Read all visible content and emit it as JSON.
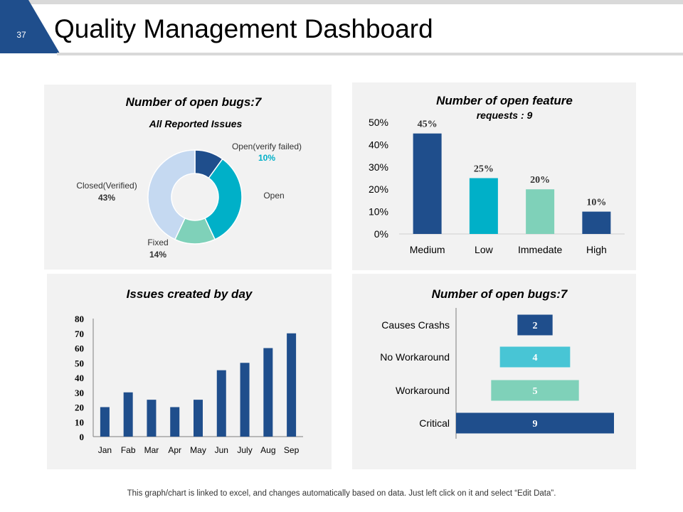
{
  "slide": {
    "number": "37",
    "title": "Quality Management Dashboard",
    "footer": "This graph/chart is linked to excel, and changes automatically based on data. Just left click on it and select “Edit Data”."
  },
  "colors": {
    "dark_blue": "#1f4e8c",
    "cyan": "#00b0c8",
    "mint": "#7fd1b9",
    "light_blue": "#c5d9f1",
    "teal_cyan": "#48c5d5"
  },
  "chart_data": [
    {
      "type": "pie",
      "title": "Number of open bugs:7",
      "subtitle": "All Reported Issues",
      "slices": [
        {
          "label": "Open(verify failed)",
          "value": 10,
          "display": "10%",
          "color": "#1f4e8c"
        },
        {
          "label": "Open",
          "value": 33,
          "display": "",
          "color": "#00b0c8"
        },
        {
          "label": "Fixed",
          "value": 14,
          "display": "14%",
          "color": "#7fd1b9"
        },
        {
          "label": "Closed(Verified)",
          "value": 43,
          "display": "43%",
          "color": "#c5d9f1"
        }
      ]
    },
    {
      "type": "bar",
      "title": "Number of open feature",
      "subtitle": "requests : 9",
      "categories": [
        "Medium",
        "Low",
        "Immedate",
        "High"
      ],
      "values": [
        45,
        25,
        20,
        10
      ],
      "labels": [
        "45%",
        "25%",
        "20%",
        "10%"
      ],
      "colors": [
        "#1f4e8c",
        "#00b0c8",
        "#7fd1b9",
        "#1f4e8c"
      ],
      "ylim": [
        0,
        50
      ],
      "yticks": [
        "0%",
        "10%",
        "20%",
        "30%",
        "40%",
        "50%"
      ],
      "ytick_values": [
        0,
        10,
        20,
        30,
        40,
        50
      ]
    },
    {
      "type": "bar",
      "title": "Issues created by day",
      "categories": [
        "Jan",
        "Fab",
        "Mar",
        "Apr",
        "May",
        "Jun",
        "July",
        "Aug",
        "Sep"
      ],
      "values": [
        20,
        30,
        25,
        20,
        25,
        45,
        50,
        60,
        70
      ],
      "ylim": [
        0,
        80
      ],
      "yticks": [
        "0",
        "10",
        "20",
        "30",
        "40",
        "50",
        "60",
        "70",
        "80"
      ],
      "ytick_values": [
        0,
        10,
        20,
        30,
        40,
        50,
        60,
        70,
        80
      ],
      "color": "#1f4e8c"
    },
    {
      "type": "bar",
      "orientation": "horizontal",
      "title": "Number of open bugs:7",
      "categories": [
        "Causes Crashs",
        "No Workaround",
        "Workaround",
        "Critical"
      ],
      "values": [
        2,
        4,
        5,
        9
      ],
      "labels": [
        "2",
        "4",
        "5",
        "9"
      ],
      "colors": [
        "#1f4e8c",
        "#48c5d5",
        "#7fd1b9",
        "#1f4e8c"
      ],
      "xlim": [
        0,
        9
      ]
    }
  ]
}
